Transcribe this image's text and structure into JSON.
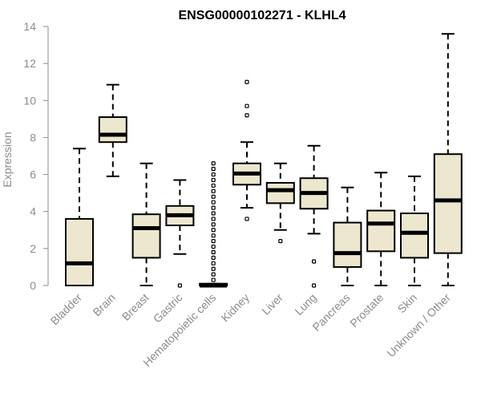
{
  "chart_data": {
    "type": "boxplot",
    "title": "ENSG00000102271 - KLHL4",
    "xlabel": "",
    "ylabel": "Expression",
    "ylim": [
      0,
      14
    ],
    "yticks": [
      "0",
      "2",
      "4",
      "6",
      "8",
      "10",
      "12",
      "14"
    ],
    "grid": false,
    "box_fill": "#ede7cf",
    "categories": [
      "Bladder",
      "Brain",
      "Breast",
      "Gastric",
      "Hematopoietic cells",
      "Kidney",
      "Liver",
      "Lung",
      "Pancreas",
      "Prostate",
      "Skin",
      "Unknown / Other"
    ],
    "boxes": [
      {
        "whisker_low": 0.0,
        "q1": 0.0,
        "median": 1.2,
        "q3": 3.6,
        "whisker_high": 7.4,
        "outliers": []
      },
      {
        "whisker_low": 5.9,
        "q1": 7.75,
        "median": 8.15,
        "q3": 9.1,
        "whisker_high": 10.85,
        "outliers": []
      },
      {
        "whisker_low": 0.0,
        "q1": 1.5,
        "median": 3.1,
        "q3": 3.85,
        "whisker_high": 6.6,
        "outliers": []
      },
      {
        "whisker_low": 1.7,
        "q1": 3.25,
        "median": 3.8,
        "q3": 4.3,
        "whisker_high": 5.7,
        "outliers": [
          0.0
        ]
      },
      {
        "whisker_low": 0.0,
        "q1": 0.0,
        "median": 0.0,
        "q3": 0.1,
        "whisker_high": 0.1,
        "outliers": [
          0.3,
          0.6,
          0.9,
          1.2,
          1.5,
          1.8,
          2.1,
          2.4,
          2.7,
          3.0,
          3.3,
          3.6,
          3.9,
          4.2,
          4.5,
          4.8,
          5.1,
          5.4,
          5.7,
          6.0,
          6.3,
          6.6
        ]
      },
      {
        "whisker_low": 4.2,
        "q1": 5.45,
        "median": 6.05,
        "q3": 6.6,
        "whisker_high": 7.75,
        "outliers": [
          3.6,
          9.2,
          9.7,
          11.0
        ]
      },
      {
        "whisker_low": 3.0,
        "q1": 4.45,
        "median": 5.15,
        "q3": 5.55,
        "whisker_high": 6.6,
        "outliers": [
          2.4
        ]
      },
      {
        "whisker_low": 2.8,
        "q1": 4.15,
        "median": 5.0,
        "q3": 5.8,
        "whisker_high": 7.55,
        "outliers": [
          0.0,
          1.3
        ]
      },
      {
        "whisker_low": 0.0,
        "q1": 1.0,
        "median": 1.75,
        "q3": 3.4,
        "whisker_high": 5.3,
        "outliers": []
      },
      {
        "whisker_low": 0.0,
        "q1": 1.85,
        "median": 3.35,
        "q3": 4.05,
        "whisker_high": 6.1,
        "outliers": []
      },
      {
        "whisker_low": 0.0,
        "q1": 1.5,
        "median": 2.85,
        "q3": 3.9,
        "whisker_high": 5.9,
        "outliers": []
      },
      {
        "whisker_low": 0.0,
        "q1": 1.75,
        "median": 4.6,
        "q3": 7.1,
        "whisker_high": 13.6,
        "outliers": []
      }
    ]
  }
}
